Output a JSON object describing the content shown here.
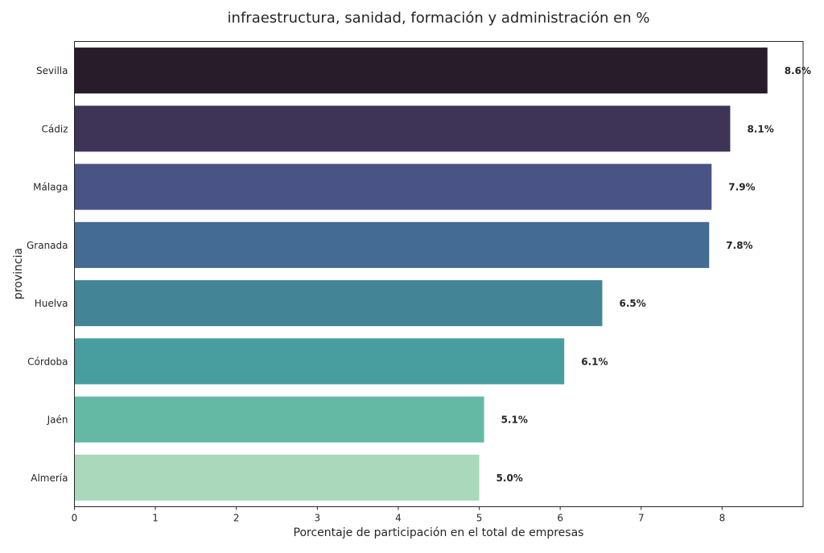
{
  "chart_data": {
    "type": "bar",
    "orientation": "horizontal",
    "title": "infraestructura, sanidad, formación y administración en %",
    "xlabel": "Porcentaje de participación en el total de empresas",
    "ylabel": "provincia",
    "categories": [
      "Sevilla",
      "Cádiz",
      "Málaga",
      "Granada",
      "Huelva",
      "Córdoba",
      "Jaén",
      "Almería"
    ],
    "values": [
      8.56,
      8.1,
      7.87,
      7.84,
      6.52,
      6.05,
      5.06,
      5.0
    ],
    "data_labels": [
      "8.6%",
      "8.1%",
      "7.9%",
      "7.8%",
      "6.5%",
      "6.1%",
      "5.1%",
      "5.0%"
    ],
    "colors": [
      "#281c2b",
      "#3e3458",
      "#4a5386",
      "#446b94",
      "#438597",
      "#489e9e",
      "#64b9a5",
      "#aad8ba"
    ],
    "xticks": [
      "0",
      "1",
      "2",
      "3",
      "4",
      "5",
      "6",
      "7",
      "8"
    ],
    "xlim": [
      0,
      9
    ],
    "grid": false
  }
}
